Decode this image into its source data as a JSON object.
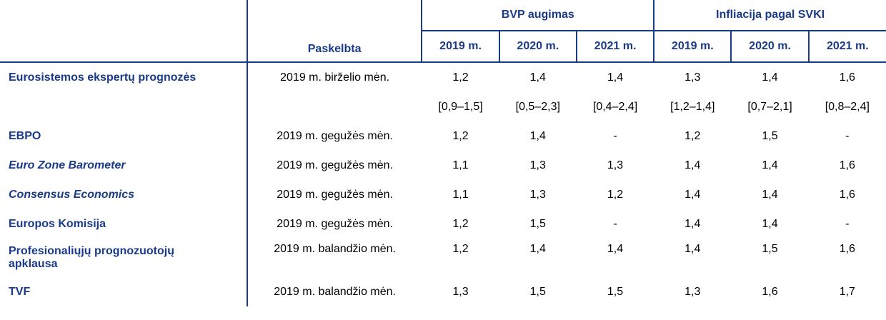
{
  "header": {
    "published_label": "Paskelbta",
    "groups": [
      "BVP augimas",
      "Infliacija pagal SVKI"
    ],
    "years": [
      "2019 m.",
      "2020 m.",
      "2021 m.",
      "2019 m.",
      "2020 m.",
      "2021 m."
    ]
  },
  "rows": [
    {
      "name": "Eurosistemos ekspertų prognozės",
      "published": "2019 m. birželio mėn.",
      "values": [
        "1,2",
        "1,4",
        "1,4",
        "1,3",
        "1,4",
        "1,6"
      ]
    },
    {
      "name": "",
      "published": "",
      "values": [
        "[0,9–1,5]",
        "[0,5–2,3]",
        "[0,4–2,4]",
        "[1,2–1,4]",
        "[0,7–2,1]",
        "[0,8–2,4]"
      ]
    },
    {
      "name": "EBPO",
      "published": "2019 m. gegužės mėn.",
      "values": [
        "1,2",
        "1,4",
        "-",
        "1,2",
        "1,5",
        "-"
      ]
    },
    {
      "name": "Euro Zone Barometer",
      "published": "2019 m. gegužės mėn.",
      "values": [
        "1,1",
        "1,3",
        "1,3",
        "1,4",
        "1,4",
        "1,6"
      ]
    },
    {
      "name": "Consensus Economics",
      "published": "2019 m. gegužės mėn.",
      "values": [
        "1,1",
        "1,3",
        "1,2",
        "1,4",
        "1,4",
        "1,6"
      ]
    },
    {
      "name": "Europos Komisija",
      "published": "2019 m. gegužės mėn.",
      "values": [
        "1,2",
        "1,5",
        "-",
        "1,4",
        "1,4",
        "-"
      ]
    },
    {
      "name": "Profesionaliųjų prognozuotojų apklausa",
      "published": "2019 m. balandžio mėn.",
      "values": [
        "1,2",
        "1,4",
        "1,4",
        "1,4",
        "1,5",
        "1,6"
      ]
    },
    {
      "name": "TVF",
      "published": "2019 m. balandžio mėn.",
      "values": [
        "1,3",
        "1,5",
        "1,5",
        "1,3",
        "1,6",
        "1,7"
      ]
    }
  ]
}
